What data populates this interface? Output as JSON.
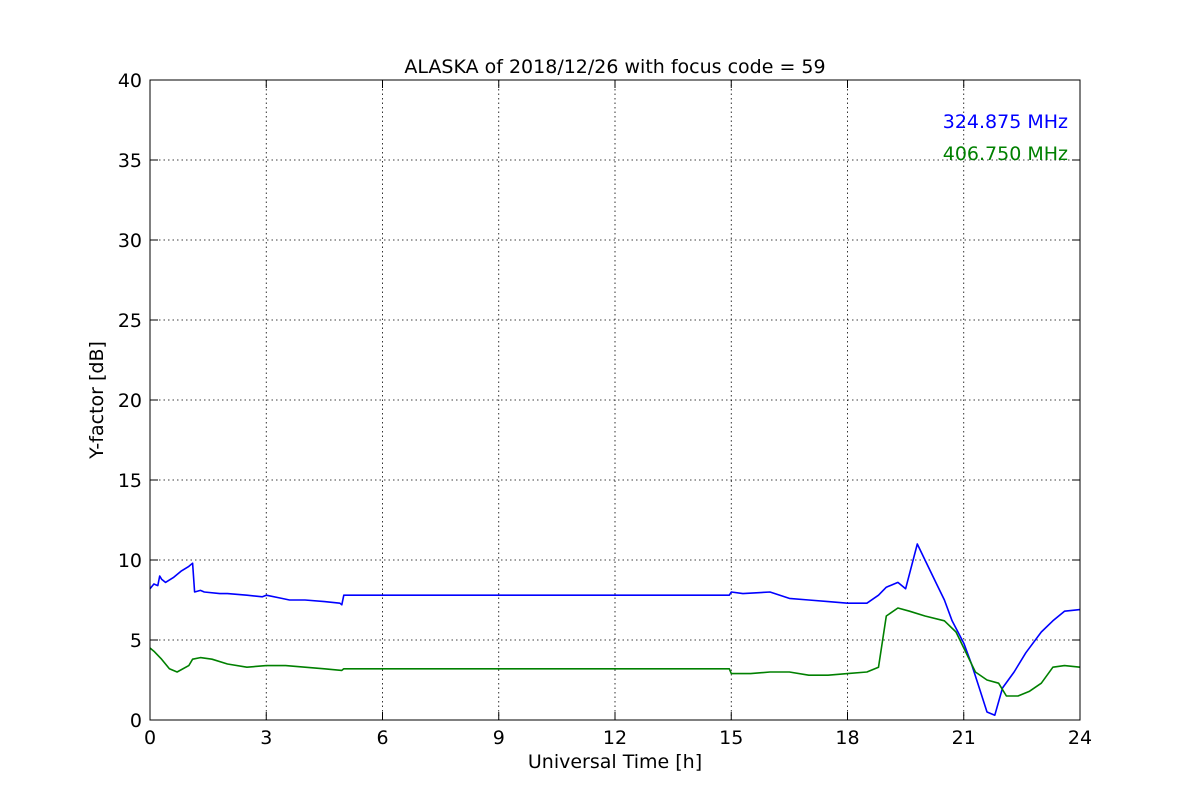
{
  "chart_data": {
    "type": "line",
    "title": "ALASKA of 2018/12/26 with focus code = 59",
    "xlabel": "Universal Time [h]",
    "ylabel": "Y-factor [dB]",
    "xlim": [
      0,
      24
    ],
    "ylim": [
      0,
      40
    ],
    "xticks": [
      0,
      3,
      6,
      9,
      12,
      15,
      18,
      21,
      24
    ],
    "yticks": [
      0,
      5,
      10,
      15,
      20,
      25,
      30,
      35,
      40
    ],
    "grid": true,
    "legend_placement": "top-right",
    "series": [
      {
        "name": "324.875 MHz",
        "color": "#0000ff",
        "x": [
          0,
          0.1,
          0.2,
          0.25,
          0.3,
          0.4,
          0.6,
          0.8,
          1.0,
          1.1,
          1.15,
          1.3,
          1.4,
          1.8,
          2.0,
          2.5,
          2.9,
          3.0,
          3.4,
          3.6,
          4.0,
          4.5,
          4.9,
          4.95,
          5.0,
          6.0,
          9.0,
          12.0,
          14.95,
          15.0,
          15.3,
          16.0,
          16.5,
          17.0,
          17.5,
          18.0,
          18.5,
          18.8,
          19.0,
          19.3,
          19.5,
          19.8,
          20.0,
          20.3,
          20.5,
          20.7,
          21.0,
          21.2,
          21.4,
          21.6,
          21.8,
          22.0,
          22.3,
          22.6,
          23.0,
          23.3,
          23.6,
          24.0
        ],
        "y": [
          8.2,
          8.5,
          8.4,
          9.0,
          8.8,
          8.6,
          8.9,
          9.3,
          9.6,
          9.8,
          8.0,
          8.1,
          8.0,
          7.9,
          7.9,
          7.8,
          7.7,
          7.8,
          7.6,
          7.5,
          7.5,
          7.4,
          7.3,
          7.2,
          7.8,
          7.8,
          7.8,
          7.8,
          7.8,
          8.0,
          7.9,
          8.0,
          7.6,
          7.5,
          7.4,
          7.3,
          7.3,
          7.8,
          8.3,
          8.6,
          8.2,
          11.0,
          10.0,
          8.5,
          7.5,
          6.2,
          4.8,
          3.5,
          2.0,
          0.5,
          0.3,
          2.0,
          3.0,
          4.2,
          5.5,
          6.2,
          6.8,
          6.9
        ]
      },
      {
        "name": "406.750 MHz",
        "color": "#008000",
        "x": [
          0,
          0.1,
          0.3,
          0.5,
          0.7,
          1.0,
          1.1,
          1.3,
          1.6,
          2.0,
          2.5,
          3.0,
          3.5,
          4.0,
          4.5,
          4.95,
          5.0,
          6.0,
          9.0,
          12.0,
          14.95,
          15.0,
          15.5,
          16.0,
          16.5,
          17.0,
          17.5,
          18.0,
          18.5,
          18.8,
          19.0,
          19.3,
          19.6,
          20.0,
          20.5,
          20.8,
          21.0,
          21.3,
          21.6,
          21.9,
          22.1,
          22.4,
          22.7,
          23.0,
          23.3,
          23.6,
          24.0
        ],
        "y": [
          4.5,
          4.3,
          3.8,
          3.2,
          3.0,
          3.4,
          3.8,
          3.9,
          3.8,
          3.5,
          3.3,
          3.4,
          3.4,
          3.3,
          3.2,
          3.1,
          3.2,
          3.2,
          3.2,
          3.2,
          3.2,
          2.9,
          2.9,
          3.0,
          3.0,
          2.8,
          2.8,
          2.9,
          3.0,
          3.3,
          6.5,
          7.0,
          6.8,
          6.5,
          6.2,
          5.5,
          4.5,
          3.0,
          2.5,
          2.3,
          1.5,
          1.5,
          1.8,
          2.3,
          3.3,
          3.4,
          3.3
        ]
      }
    ]
  }
}
